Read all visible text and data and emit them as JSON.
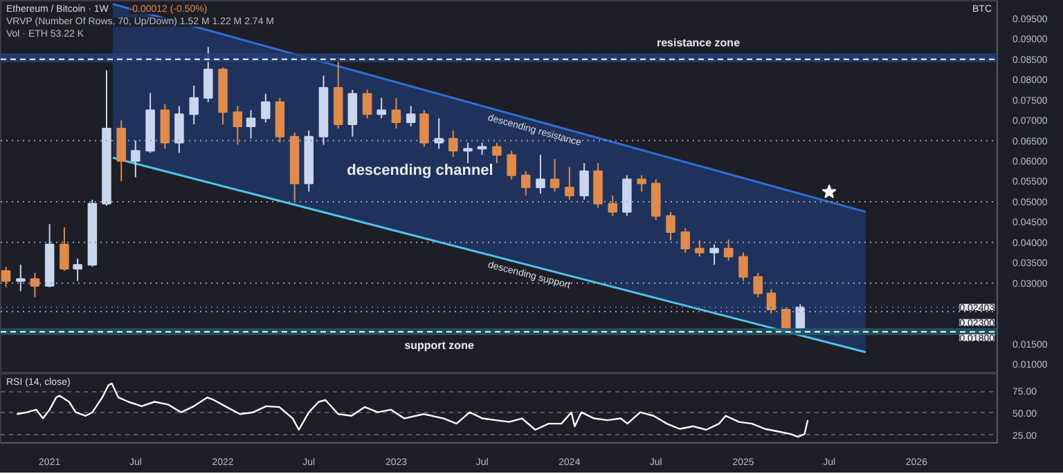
{
  "chart_data": [
    {
      "type": "candlestick",
      "title": "Ethereum / Bitcoin · 1W",
      "ylabel": "BTC",
      "annotations": [
        "-0.00012 (-0.50%)",
        "VRVP (Number Of Rows, 70, Up/Down)  1.52 M  1.22 M  2.74 M",
        "Vol · ETH  53.22 K",
        "descending channel"
      ],
      "x": [
        "2020-10",
        "2020-11",
        "2020-12",
        "2021-01",
        "2021-02",
        "2021-03",
        "2021-04",
        "2021-05",
        "2021-06",
        "2021-07",
        "2021-08",
        "2021-09",
        "2021-10",
        "2021-11",
        "2021-12",
        "2022-01",
        "2022-02",
        "2022-03",
        "2022-04",
        "2022-05",
        "2022-06",
        "2022-07",
        "2022-08",
        "2022-09",
        "2022-10",
        "2022-11",
        "2022-12",
        "2023-01",
        "2023-02",
        "2023-03",
        "2023-04",
        "2023-05",
        "2023-06",
        "2023-07",
        "2023-08",
        "2023-09",
        "2023-10",
        "2023-11",
        "2023-12",
        "2024-01",
        "2024-02",
        "2024-03",
        "2024-04",
        "2024-05",
        "2024-06",
        "2024-07",
        "2024-08",
        "2024-09",
        "2024-10",
        "2024-11",
        "2024-12",
        "2025-01",
        "2025-02",
        "2025-03",
        "2025-04",
        "2025-05"
      ],
      "ohlc": [
        [
          0.033,
          0.034,
          0.029,
          0.0305
        ],
        [
          0.0305,
          0.0345,
          0.028,
          0.031
        ],
        [
          0.031,
          0.0325,
          0.0265,
          0.0293
        ],
        [
          0.0293,
          0.0445,
          0.029,
          0.0395
        ],
        [
          0.0395,
          0.0437,
          0.033,
          0.0335
        ],
        [
          0.0335,
          0.036,
          0.0305,
          0.0345
        ],
        [
          0.0345,
          0.0505,
          0.034,
          0.0495
        ],
        [
          0.0495,
          0.0823,
          0.049,
          0.068
        ],
        [
          0.068,
          0.07,
          0.055,
          0.06
        ],
        [
          0.06,
          0.065,
          0.056,
          0.0625
        ],
        [
          0.0625,
          0.0767,
          0.062,
          0.0725
        ],
        [
          0.0725,
          0.074,
          0.063,
          0.0645
        ],
        [
          0.0645,
          0.0735,
          0.062,
          0.0715
        ],
        [
          0.0715,
          0.0785,
          0.069,
          0.0755
        ],
        [
          0.0755,
          0.088,
          0.0745,
          0.0825
        ],
        [
          0.0825,
          0.083,
          0.069,
          0.072
        ],
        [
          0.072,
          0.0735,
          0.064,
          0.0685
        ],
        [
          0.0685,
          0.0725,
          0.0655,
          0.0705
        ],
        [
          0.0705,
          0.0765,
          0.0695,
          0.0745
        ],
        [
          0.0745,
          0.0755,
          0.0645,
          0.066
        ],
        [
          0.066,
          0.067,
          0.0502,
          0.0545
        ],
        [
          0.0545,
          0.0675,
          0.0525,
          0.066
        ],
        [
          0.066,
          0.081,
          0.064,
          0.078
        ],
        [
          0.078,
          0.0854,
          0.068,
          0.069
        ],
        [
          0.069,
          0.0775,
          0.066,
          0.0765
        ],
        [
          0.0765,
          0.0775,
          0.0705,
          0.0715
        ],
        [
          0.0715,
          0.0755,
          0.0705,
          0.0725
        ],
        [
          0.0725,
          0.0755,
          0.068,
          0.0695
        ],
        [
          0.0695,
          0.0735,
          0.0685,
          0.0715
        ],
        [
          0.0715,
          0.0725,
          0.0635,
          0.0645
        ],
        [
          0.0645,
          0.0705,
          0.063,
          0.0655
        ],
        [
          0.0655,
          0.0675,
          0.061,
          0.0625
        ],
        [
          0.0625,
          0.0645,
          0.0595,
          0.063
        ],
        [
          0.063,
          0.0645,
          0.0615,
          0.0635
        ],
        [
          0.0635,
          0.0645,
          0.0595,
          0.0615
        ],
        [
          0.0615,
          0.0625,
          0.0555,
          0.0565
        ],
        [
          0.0565,
          0.0575,
          0.0515,
          0.0535
        ],
        [
          0.0535,
          0.0615,
          0.052,
          0.0555
        ],
        [
          0.0555,
          0.0605,
          0.0525,
          0.0535
        ],
        [
          0.0535,
          0.0585,
          0.0505,
          0.0515
        ],
        [
          0.0515,
          0.0595,
          0.0505,
          0.0575
        ],
        [
          0.0575,
          0.0595,
          0.0485,
          0.0495
        ],
        [
          0.0495,
          0.0515,
          0.0465,
          0.0475
        ],
        [
          0.0475,
          0.0565,
          0.0465,
          0.0555
        ],
        [
          0.0555,
          0.0565,
          0.0525,
          0.0545
        ],
        [
          0.0545,
          0.0555,
          0.0455,
          0.0465
        ],
        [
          0.0465,
          0.0475,
          0.0405,
          0.0425
        ],
        [
          0.0425,
          0.0435,
          0.0375,
          0.0385
        ],
        [
          0.0385,
          0.0405,
          0.0365,
          0.0375
        ],
        [
          0.0375,
          0.0395,
          0.0345,
          0.0385
        ],
        [
          0.0385,
          0.0407,
          0.0355,
          0.0365
        ],
        [
          0.0365,
          0.0375,
          0.0305,
          0.0315
        ],
        [
          0.0315,
          0.0325,
          0.0265,
          0.0275
        ],
        [
          0.0275,
          0.0285,
          0.0225,
          0.0235
        ],
        [
          0.0235,
          0.024,
          0.0185,
          0.019
        ],
        [
          0.019,
          0.0248,
          0.0188,
          0.02403
        ]
      ],
      "colors": [
        "#e08a4c",
        "#c9d6ee",
        "#e08a4c",
        "#c9d6ee",
        "#e08a4c",
        "#c9d6ee",
        "#c9d6ee",
        "#c9d6ee",
        "#e08a4c",
        "#c9d6ee",
        "#c9d6ee",
        "#e08a4c",
        "#c9d6ee",
        "#c9d6ee",
        "#c9d6ee",
        "#e08a4c",
        "#e08a4c",
        "#c9d6ee",
        "#c9d6ee",
        "#e08a4c",
        "#e08a4c",
        "#c9d6ee",
        "#c9d6ee",
        "#e08a4c",
        "#c9d6ee",
        "#e08a4c",
        "#c9d6ee",
        "#e08a4c",
        "#c9d6ee",
        "#e08a4c",
        "#c9d6ee",
        "#e08a4c",
        "#c9d6ee",
        "#c9d6ee",
        "#e08a4c",
        "#e08a4c",
        "#e08a4c",
        "#c9d6ee",
        "#e08a4c",
        "#e08a4c",
        "#c9d6ee",
        "#e08a4c",
        "#e08a4c",
        "#c9d6ee",
        "#e08a4c",
        "#e08a4c",
        "#e08a4c",
        "#e08a4c",
        "#e08a4c",
        "#c9d6ee",
        "#e08a4c",
        "#e08a4c",
        "#e08a4c",
        "#e08a4c",
        "#e08a4c",
        "#c9d6ee"
      ],
      "series": [
        {
          "type": "line",
          "name": "descending resistance",
          "color": "#2f6fd6",
          "x": [
            "2021-05-14",
            "2025-09-16"
          ],
          "values": [
            0.0986,
            0.0475
          ],
          "lower": [
            0.0608,
            0.013
          ],
          "upper": [
            0.0986,
            0.0475
          ]
        },
        {
          "type": "line",
          "name": "descending support",
          "color": "#4fc3e8",
          "x": [
            "2021-05-14",
            "2025-09-16"
          ],
          "values": [
            0.0608,
            0.013
          ]
        },
        {
          "type": "scatter",
          "color": "#ffffff",
          "marker": "star",
          "x": [
            "2025-07-01"
          ],
          "values": [
            0.0524
          ]
        }
      ],
      "ref_lines": [
        {
          "axis": "y",
          "value": 0.085,
          "line_style": "dashed",
          "color": "#ffffff"
        },
        {
          "axis": "y",
          "value": 0.065,
          "line_style": "dotted",
          "color": "#9aa0aa"
        },
        {
          "axis": "y",
          "value": 0.05,
          "line_style": "dotted",
          "color": "#9aa0aa"
        },
        {
          "axis": "y",
          "value": 0.04,
          "line_style": "dotted",
          "color": "#9aa0aa"
        },
        {
          "axis": "y",
          "value": 0.03,
          "line_style": "dotted",
          "color": "#9aa0aa"
        },
        {
          "axis": "y",
          "value": 0.02403,
          "line_style": "dotted",
          "color": "#3d6fd0",
          "label": "0.02403"
        },
        {
          "axis": "y",
          "value": 0.023,
          "line_style": "dotted",
          "color": "#9aa0aa",
          "label": "0.02300"
        },
        {
          "axis": "y",
          "value": 0.018,
          "line_style": "dashed",
          "color": "#ffffff",
          "label": "0.01800"
        }
      ],
      "bands": [
        {
          "axis": "y",
          "from": 0.0843,
          "to": 0.0865,
          "color": "#24407a",
          "label": "resistance zone"
        },
        {
          "axis": "y",
          "from": 0.0172,
          "to": 0.0189,
          "color": "#1f5b6b",
          "label": "support zone"
        }
      ],
      "xlim": [
        "2020-09-20",
        "2026-06-20"
      ],
      "ylim": [
        0.0077,
        0.0994
      ],
      "yticks": [
        {
          "value": 0.095,
          "label": "0.09500"
        },
        {
          "value": 0.09,
          "label": "0.09000"
        },
        {
          "value": 0.085,
          "label": "0.08500"
        },
        {
          "value": 0.08,
          "label": "0.08000"
        },
        {
          "value": 0.075,
          "label": "0.07500"
        },
        {
          "value": 0.07,
          "label": "0.07000"
        },
        {
          "value": 0.065,
          "label": "0.06500"
        },
        {
          "value": 0.06,
          "label": "0.06000"
        },
        {
          "value": 0.055,
          "label": "0.05500"
        },
        {
          "value": 0.05,
          "label": "0.05000"
        },
        {
          "value": 0.045,
          "label": "0.04500"
        },
        {
          "value": 0.04,
          "label": "0.04000"
        },
        {
          "value": 0.035,
          "label": "0.03500"
        },
        {
          "value": 0.03,
          "label": "0.03000"
        },
        {
          "value": 0.015,
          "label": "0.01500"
        },
        {
          "value": 0.01,
          "label": "0.01000"
        }
      ],
      "tick_labels": "y"
    },
    {
      "type": "line",
      "title": "RSI (14, close)",
      "color": "#ffffff",
      "grid": "y",
      "x": [
        "2020-10-24",
        "2020-11-14",
        "2020-12-04",
        "2020-12-18",
        "2021-01-01",
        "2021-01-15",
        "2021-01-22",
        "2021-02-11",
        "2021-02-25",
        "2021-03-18",
        "2021-04-01",
        "2021-04-22",
        "2021-05-05",
        "2021-05-12",
        "2021-05-26",
        "2021-06-16",
        "2021-07-14",
        "2021-08-10",
        "2021-09-07",
        "2021-10-05",
        "2021-11-01",
        "2021-11-29",
        "2021-12-13",
        "2022-01-09",
        "2022-02-06",
        "2022-03-06",
        "2022-04-02",
        "2022-04-30",
        "2022-05-28",
        "2022-06-10",
        "2022-07-01",
        "2022-07-22",
        "2022-08-05",
        "2022-09-01",
        "2022-09-29",
        "2022-10-27",
        "2022-11-23",
        "2022-12-21",
        "2023-01-18",
        "2023-02-28",
        "2023-04-11",
        "2023-05-08",
        "2023-06-05",
        "2023-07-02",
        "2023-07-30",
        "2023-08-27",
        "2023-09-23",
        "2023-10-21",
        "2023-11-18",
        "2023-12-15",
        "2024-01-05",
        "2024-01-12",
        "2024-01-26",
        "2024-02-22",
        "2024-03-21",
        "2024-04-18",
        "2024-05-02",
        "2024-05-29",
        "2024-06-26",
        "2024-07-24",
        "2024-08-20",
        "2024-09-17",
        "2024-10-15",
        "2024-11-11",
        "2024-11-25",
        "2024-12-23",
        "2025-01-19",
        "2025-02-16",
        "2025-03-16",
        "2025-04-12",
        "2025-04-26",
        "2025-05-10",
        "2025-05-17"
      ],
      "values": [
        49,
        51,
        54,
        44,
        54,
        68,
        70,
        63,
        51,
        47,
        51,
        68,
        82,
        84,
        68,
        63,
        58,
        63,
        60,
        51,
        58,
        68,
        65,
        57,
        49,
        51,
        58,
        57,
        44,
        31,
        51,
        63,
        65,
        49,
        47,
        57,
        51,
        54,
        44,
        49,
        44,
        38,
        51,
        44,
        42,
        40,
        44,
        31,
        38,
        38,
        51,
        35,
        51,
        44,
        42,
        44,
        38,
        51,
        47,
        38,
        32,
        35,
        31,
        38,
        47,
        40,
        38,
        32,
        29,
        26,
        23,
        26,
        42
      ],
      "xlim": [
        "2020-09-20",
        "2026-06-20"
      ],
      "ylim": [
        16,
        95
      ],
      "xticks": [
        {
          "value": "2021-01-01",
          "label": "2021"
        },
        {
          "value": "2021-07-01",
          "label": "Jul"
        },
        {
          "value": "2022-01-01",
          "label": "2022"
        },
        {
          "value": "2022-07-01",
          "label": "Jul"
        },
        {
          "value": "2023-01-01",
          "label": "2023"
        },
        {
          "value": "2023-07-01",
          "label": "Jul"
        },
        {
          "value": "2024-01-01",
          "label": "2024"
        },
        {
          "value": "2024-07-01",
          "label": "Jul"
        },
        {
          "value": "2025-01-01",
          "label": "2025"
        },
        {
          "value": "2025-07-01",
          "label": "Jul"
        },
        {
          "value": "2026-01-01",
          "label": "2026"
        }
      ],
      "yticks": [
        {
          "value": 75,
          "label": "75.00"
        },
        {
          "value": 50,
          "label": "50.00"
        },
        {
          "value": 25,
          "label": "25.00"
        }
      ]
    }
  ]
}
